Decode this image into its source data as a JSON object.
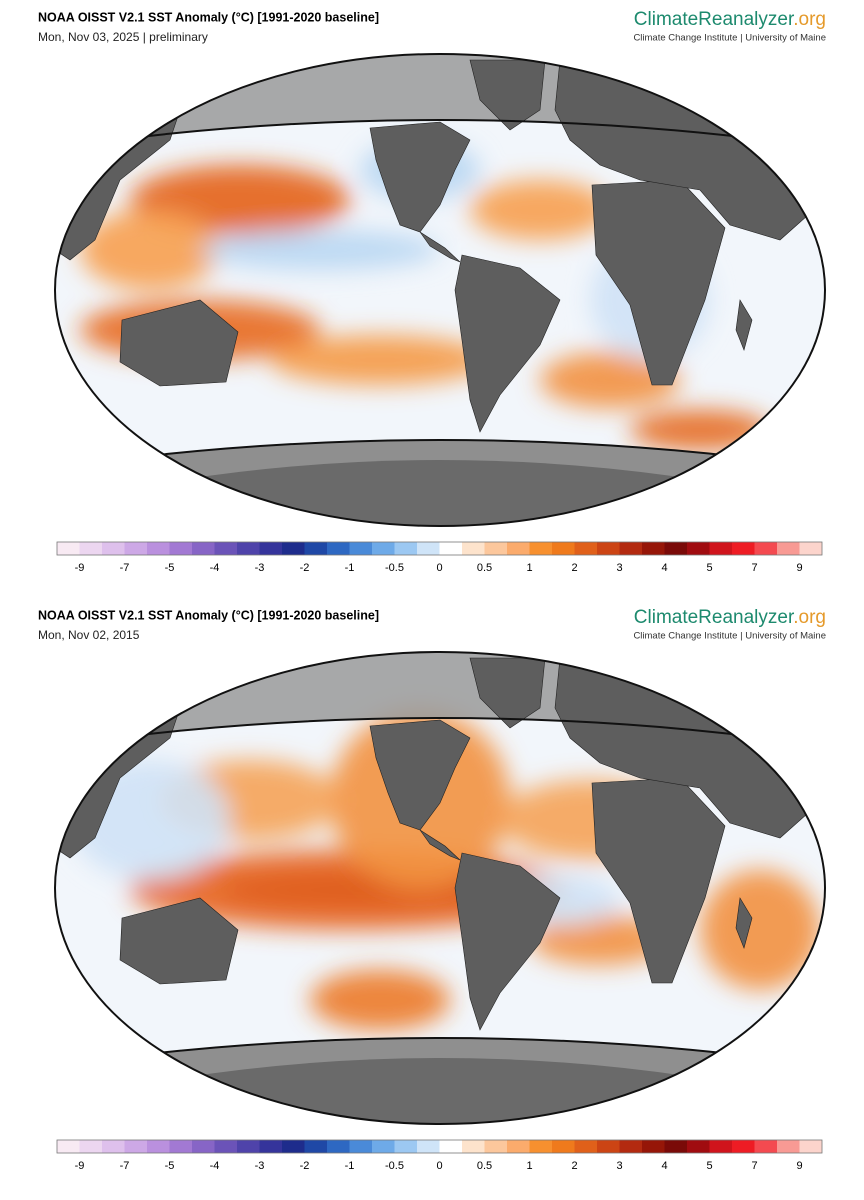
{
  "panels": [
    {
      "title": "NOAA OISST V2.1 SST Anomaly (°C) [1991-2020 baseline]",
      "subtitle": "Mon, Nov 03, 2025 | preliminary",
      "logo": {
        "name": "ClimateReanalyzer",
        "suffix": ".org",
        "credit": "Climate Change Institute | University of Maine"
      }
    },
    {
      "title": "NOAA OISST V2.1 SST Anomaly (°C) [1991-2020 baseline]",
      "subtitle": "Mon, Nov 02, 2015",
      "logo": {
        "name": "ClimateReanalyzer",
        "suffix": ".org",
        "credit": "Climate Change Institute | University of Maine"
      }
    }
  ],
  "colorbar": {
    "ticks": [
      -9,
      -7,
      -5,
      -4,
      -3,
      -2,
      -1,
      -0.5,
      0,
      0.5,
      1,
      2,
      3,
      4,
      5,
      7,
      9
    ],
    "colors": [
      "#f8eaf3",
      "#ecd6f0",
      "#dec0ec",
      "#cda8e6",
      "#ba90de",
      "#a279d3",
      "#8765c6",
      "#6b53b8",
      "#4f43aa",
      "#35349b",
      "#1e2c8c",
      "#1f48a6",
      "#2e68c2",
      "#4a8ad8",
      "#6eaae8",
      "#9cc8f2",
      "#cfe4f8",
      "#ffffff",
      "#fde3cc",
      "#fcc79c",
      "#fbab6c",
      "#f7902f",
      "#ef7a1c",
      "#e0601a",
      "#cc4414",
      "#b32a10",
      "#961608",
      "#7a0a08",
      "#a00c10",
      "#d0141c",
      "#ee1c24",
      "#f44a50",
      "#f89a94",
      "#fcd4cc"
    ]
  }
}
